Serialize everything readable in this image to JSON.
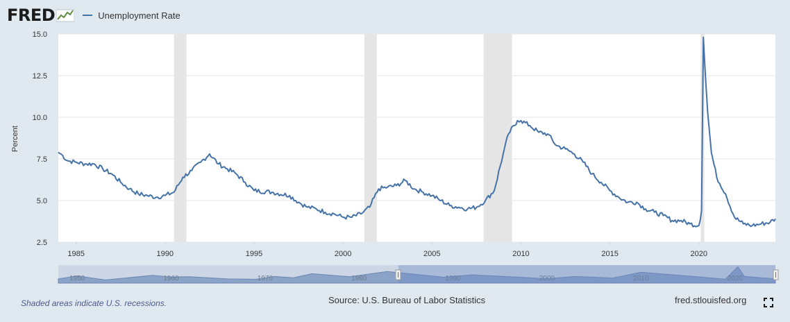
{
  "header": {
    "logo_text": "FRED",
    "legend_label": "Unemployment Rate",
    "series_color": "#4572a7"
  },
  "footer": {
    "note": "Shaded areas indicate U.S. recessions.",
    "source": "Source: U.S. Bureau of Labor Statistics",
    "site": "fred.stlouisfed.org",
    "fullscreen_icon": "fullscreen-icon"
  },
  "chart_data": {
    "type": "line",
    "title": "",
    "xlabel": "",
    "ylabel": "Percent",
    "xlim": [
      1984.0,
      2024.3
    ],
    "ylim": [
      2.5,
      15.0
    ],
    "yticks": [
      "2.5",
      "5.0",
      "7.5",
      "10.0",
      "12.5",
      "15.0"
    ],
    "xticks": [
      "1985",
      "1990",
      "1995",
      "2000",
      "2005",
      "2010",
      "2015",
      "2020"
    ],
    "grid": true,
    "recession_shading": [
      [
        1990.5,
        1991.2
      ],
      [
        2001.2,
        2001.9
      ],
      [
        2007.9,
        2009.5
      ],
      [
        2020.1,
        2020.3
      ]
    ],
    "recession_color": "#e5e5e5",
    "series": [
      {
        "name": "Unemployment Rate",
        "x": [
          1984.0,
          1984.25,
          1984.5,
          1985.0,
          1985.5,
          1986.0,
          1986.5,
          1987.0,
          1987.5,
          1988.0,
          1988.5,
          1989.0,
          1989.5,
          1990.0,
          1990.5,
          1991.0,
          1991.5,
          1992.0,
          1992.5,
          1993.0,
          1993.5,
          1994.0,
          1994.5,
          1995.0,
          1996.0,
          1997.0,
          1997.5,
          1998.0,
          1998.5,
          1999.0,
          1999.5,
          2000.0,
          2000.5,
          2001.0,
          2001.5,
          2002.0,
          2002.5,
          2003.0,
          2003.5,
          2004.0,
          2004.5,
          2005.0,
          2005.5,
          2006.0,
          2006.5,
          2007.0,
          2007.5,
          2008.0,
          2008.5,
          2009.0,
          2009.3,
          2009.8,
          2010.0,
          2010.5,
          2011.0,
          2011.5,
          2012.0,
          2012.5,
          2013.0,
          2013.5,
          2014.0,
          2014.5,
          2015.0,
          2015.5,
          2016.0,
          2016.5,
          2017.0,
          2017.5,
          2018.0,
          2018.5,
          2019.0,
          2019.5,
          2020.0,
          2020.15,
          2020.25,
          2020.33,
          2020.5,
          2020.7,
          2021.0,
          2021.5,
          2022.0,
          2022.5,
          2023.0,
          2023.5,
          2024.0,
          2024.3
        ],
        "values": [
          7.9,
          7.7,
          7.4,
          7.3,
          7.2,
          7.2,
          6.9,
          6.6,
          6.1,
          5.7,
          5.4,
          5.3,
          5.2,
          5.3,
          5.5,
          6.4,
          6.8,
          7.3,
          7.8,
          7.2,
          6.9,
          6.6,
          6.1,
          5.6,
          5.5,
          5.3,
          4.9,
          4.6,
          4.5,
          4.3,
          4.2,
          4.0,
          4.0,
          4.2,
          4.6,
          5.7,
          5.8,
          5.9,
          6.2,
          5.7,
          5.5,
          5.3,
          5.0,
          4.7,
          4.6,
          4.5,
          4.6,
          5.0,
          5.6,
          7.8,
          9.0,
          9.8,
          9.8,
          9.5,
          9.1,
          9.0,
          8.3,
          8.1,
          7.8,
          7.3,
          6.6,
          6.1,
          5.6,
          5.2,
          4.9,
          4.9,
          4.5,
          4.3,
          4.1,
          3.8,
          3.8,
          3.6,
          3.5,
          4.4,
          14.8,
          13.2,
          10.2,
          7.9,
          6.4,
          5.4,
          4.0,
          3.6,
          3.5,
          3.6,
          3.7,
          3.9
        ]
      }
    ],
    "navigator": {
      "tick_labels": [
        "1950",
        "1960",
        "1970",
        "1980",
        "1990",
        "2000",
        "2010",
        "2020"
      ]
    }
  }
}
